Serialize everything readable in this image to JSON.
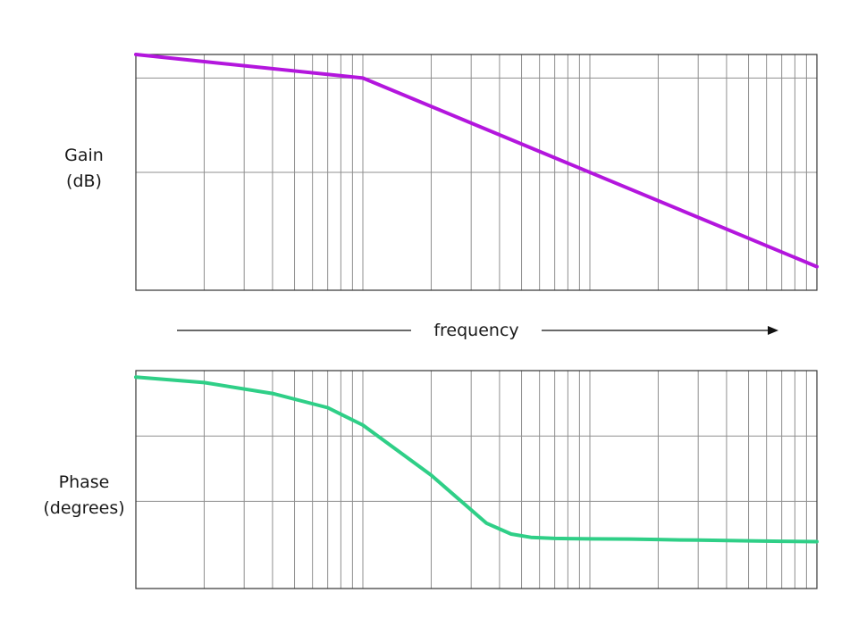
{
  "chart_data": [
    {
      "type": "line",
      "ylabel": "Gain",
      "ylabel_units": "(dB)",
      "x_scale": "log",
      "x_decades": 3,
      "x_values": [
        1,
        10,
        1000
      ],
      "y_values": [
        0,
        -10,
        -90
      ],
      "y_range": [
        -100,
        0
      ],
      "y_gridlines": [
        -10,
        -50
      ],
      "series_color": "#b316dd"
    },
    {
      "type": "line",
      "ylabel": "Phase",
      "ylabel_units": "(degrees)",
      "x_scale": "log",
      "x_decades": 3,
      "x_values": [
        1,
        2,
        4,
        7,
        10,
        20,
        35,
        45,
        55,
        70,
        100,
        150,
        200,
        250,
        300,
        500,
        700,
        1000
      ],
      "y_values": [
        -3,
        -5.5,
        -10.5,
        -17,
        -25,
        -48,
        -70,
        -75,
        -76.5,
        -77,
        -77.2,
        -77.3,
        -77.5,
        -77.7,
        -77.8,
        -78.1,
        -78.3,
        -78.5
      ],
      "y_range": [
        -100,
        0
      ],
      "y_gridlines": [
        -30,
        -60
      ],
      "series_color": "#2fcf87"
    }
  ],
  "xaxis": {
    "label": "frequency"
  },
  "style": {
    "grid_color": "#8f8f8f",
    "frame_color": "#333333",
    "arrow_color": "#111111"
  }
}
